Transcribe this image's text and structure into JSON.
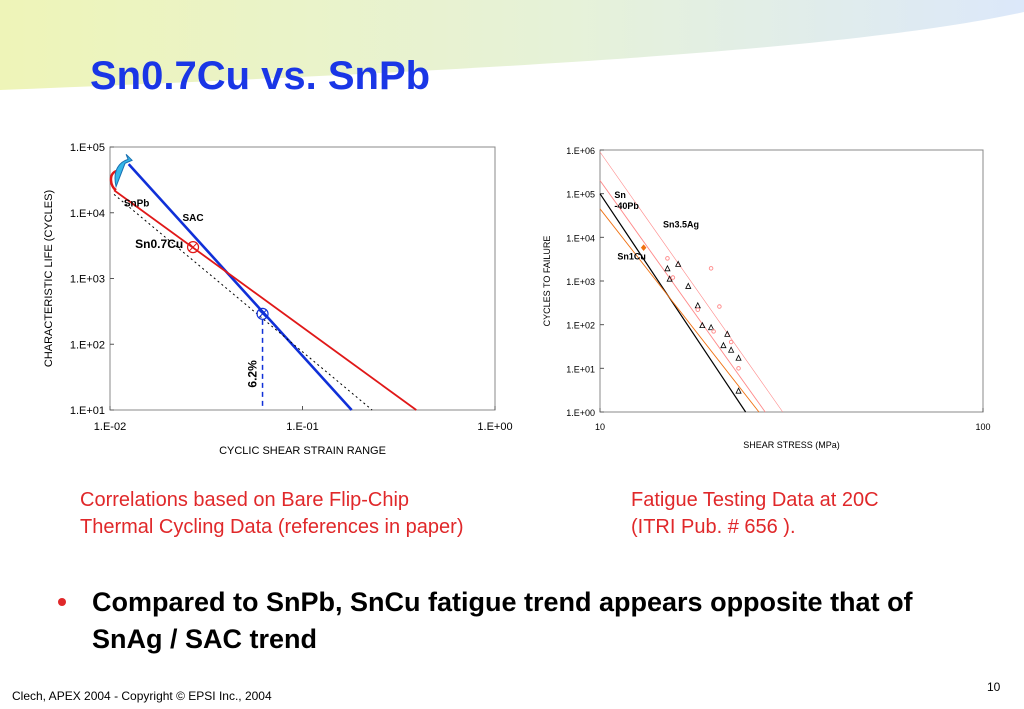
{
  "slide": {
    "title": "Sn0.7Cu vs. SnPb",
    "notes": {
      "left": [
        "Correlations based on Bare Flip-Chip",
        "Thermal Cycling Data (references in paper)"
      ],
      "right": [
        "Fatigue Testing Data at 20C",
        "(ITRI Pub. # 656 )."
      ]
    },
    "bullet": "Compared to SnPb, SnCu fatigue trend appears opposite that of SnAg / SAC trend",
    "footer": "Clech, APEX 2004  -  Copyright © EPSI Inc., 2004",
    "page_number": "10"
  },
  "colors": {
    "title": "#1a36e6",
    "note_text": "#e0282a",
    "sac_line": "#1030d8",
    "sncu_line": "#e01818",
    "snpb_line": "#000000",
    "sn1cu_orange": "#f07010",
    "sn35ag_salmon": "#ff8888",
    "banner_green": "#eef4b8",
    "banner_blue": "#dce8fa"
  },
  "chart_data": [
    {
      "type": "line",
      "xlabel": "CYCLIC SHEAR STRAIN RANGE",
      "ylabel": "CHARACTERISTIC LIFE (CYCLES)",
      "x_scale": "log",
      "y_scale": "log",
      "xlim": [
        0.01,
        1
      ],
      "ylim": [
        10,
        100000
      ],
      "x_ticks": [
        "1.E-02",
        "1.E-01",
        "1.E+00"
      ],
      "y_ticks": [
        "1.E+01",
        "1.E+02",
        "1.E+03",
        "1.E+04",
        "1.E+05"
      ],
      "grid": false,
      "series": [
        {
          "name": "SAC",
          "style": "solid",
          "color": "sac_line",
          "x": [
            0.0125,
            0.18
          ],
          "y": [
            55000,
            10
          ]
        },
        {
          "name": "Sn0.7Cu",
          "style": "solid",
          "color": "sncu_line",
          "x": [
            0.0105,
            0.39
          ],
          "y": [
            22000,
            10
          ]
        },
        {
          "name": "SnPb",
          "style": "dotted",
          "color": "snpb_line",
          "x": [
            0.0105,
            0.23
          ],
          "y": [
            19000,
            10
          ]
        }
      ],
      "markers": [
        {
          "kind": "crossover",
          "color": "sncu_line",
          "x": 0.027,
          "y": 3000
        },
        {
          "kind": "crossover",
          "color": "sac_line",
          "x": 0.062,
          "y": 290
        }
      ],
      "annotations": [
        {
          "text": "6.2%",
          "x": 0.062,
          "color": "sac_line"
        }
      ]
    },
    {
      "type": "scatter",
      "xlabel": "SHEAR STRESS (MPa)",
      "ylabel": "CYCLES TO FAILURE",
      "x_scale": "log",
      "y_scale": "log",
      "xlim": [
        10,
        100
      ],
      "ylim": [
        1,
        1000000
      ],
      "x_ticks": [
        "10",
        "100"
      ],
      "y_ticks": [
        "1.E+00",
        "1.E+01",
        "1.E+02",
        "1.E+03",
        "1.E+04",
        "1.E+05",
        "1.E+06"
      ],
      "grid": false,
      "series": [
        {
          "name": "Sn -40Pb",
          "color": "snpb_line",
          "marker": "triangle",
          "points": [
            [
              15,
              1900
            ],
            [
              16,
              2400
            ],
            [
              15.2,
              1100
            ],
            [
              17,
              750
            ],
            [
              18,
              270
            ],
            [
              18.5,
              95
            ],
            [
              19.5,
              85
            ],
            [
              21,
              33
            ],
            [
              21.5,
              60
            ],
            [
              22,
              26
            ],
            [
              23,
              17
            ],
            [
              23,
              3
            ]
          ],
          "trend": [
            [
              10,
              100000
            ],
            [
              24,
              1
            ]
          ]
        },
        {
          "name": "Sn3.5Ag",
          "color": "sn35ag_salmon",
          "marker": "circle",
          "points": [
            [
              15,
              3300
            ],
            [
              19.5,
              1950
            ],
            [
              19.8,
              70
            ],
            [
              20.5,
              260
            ],
            [
              22,
              40
            ],
            [
              23,
              10
            ],
            [
              15.5,
              1200
            ],
            [
              18,
              220
            ]
          ],
          "trend": [
            [
              10,
              200000
            ],
            [
              27,
              1
            ]
          ]
        },
        {
          "name": "Sn1Cu",
          "color": "sn1cu_orange",
          "marker": "diamond",
          "points": [
            [
              13,
              5800
            ]
          ],
          "trend": [
            [
              10,
              45000
            ],
            [
              26,
              1
            ]
          ]
        }
      ]
    }
  ]
}
